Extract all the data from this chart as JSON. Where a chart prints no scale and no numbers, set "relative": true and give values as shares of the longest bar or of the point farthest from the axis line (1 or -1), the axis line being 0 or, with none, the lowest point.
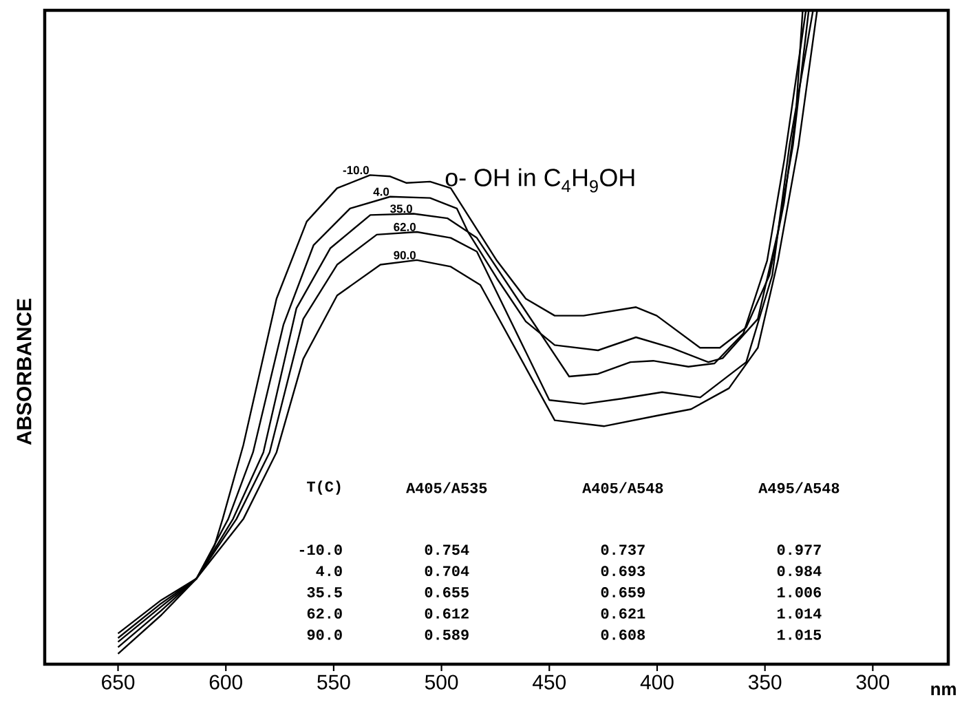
{
  "chart_data": {
    "type": "line",
    "relative": true,
    "title": "o- OH in C$_{4}$H$_{9}$OH",
    "xlabel": "nm",
    "ylabel": "ABSORBANCE",
    "xlim": [
      684,
      265
    ],
    "xticks": [
      650,
      600,
      550,
      500,
      450,
      400,
      350,
      300
    ],
    "series": [
      {
        "name": "-10.0",
        "color": "#000000",
        "x": [
          650,
          630,
          613.6,
          605.3,
          601.5,
          591.9,
          576.5,
          562.5,
          548.4,
          533.1,
          523.8,
          516.2,
          505.3,
          495.7,
          474.3,
          460.9,
          447.5,
          434.1,
          409.8,
          400.2,
          380.1,
          370.9,
          358.7,
          347.9,
          341.2,
          335.7,
          332.5
        ],
        "values": [
          0.016,
          0.075,
          0.131,
          0.181,
          0.222,
          0.335,
          0.559,
          0.677,
          0.728,
          0.748,
          0.746,
          0.736,
          0.738,
          0.728,
          0.617,
          0.559,
          0.533,
          0.533,
          0.546,
          0.533,
          0.484,
          0.484,
          0.515,
          0.595,
          0.705,
          0.839,
          1.0
        ]
      },
      {
        "name": "4.0",
        "color": "#000000",
        "x": [
          650,
          630,
          613.6,
          598.9,
          587.4,
          573.3,
          559.3,
          542.4,
          523.8,
          505.3,
          492.9,
          487.7,
          474.3,
          460.9,
          447.5,
          427.4,
          409.8,
          393.5,
          376.3,
          369.6,
          353.3,
          344,
          337,
          329.7
        ],
        "values": [
          0.026,
          0.082,
          0.131,
          0.222,
          0.324,
          0.519,
          0.641,
          0.697,
          0.715,
          0.713,
          0.697,
          0.661,
          0.59,
          0.524,
          0.488,
          0.48,
          0.5,
          0.484,
          0.462,
          0.468,
          0.528,
          0.661,
          0.794,
          1.0
        ]
      },
      {
        "name": "35.0",
        "color": "#000000",
        "x": [
          650,
          630,
          613.6,
          596.7,
          582.6,
          567.3,
          551.6,
          533,
          513,
          497.3,
          483.6,
          440.8,
          427.4,
          412.4,
          401.8,
          385.5,
          373.4,
          360,
          349,
          341,
          331
        ],
        "values": [
          0.034,
          0.088,
          0.131,
          0.222,
          0.324,
          0.544,
          0.636,
          0.687,
          0.689,
          0.682,
          0.652,
          0.44,
          0.444,
          0.462,
          0.464,
          0.455,
          0.46,
          0.506,
          0.617,
          0.772,
          1.0
        ]
      },
      {
        "name": "62.0",
        "color": "#000000",
        "x": [
          650,
          630,
          613.6,
          595.1,
          579.7,
          564.1,
          548.4,
          530,
          511.4,
          495.7,
          483.6,
          450,
          434,
          416.5,
          397.7,
          380,
          358.7,
          346.6,
          338.6,
          327.7
        ],
        "values": [
          0.04,
          0.093,
          0.131,
          0.222,
          0.324,
          0.528,
          0.611,
          0.657,
          0.661,
          0.652,
          0.631,
          0.404,
          0.398,
          0.406,
          0.416,
          0.408,
          0.462,
          0.595,
          0.794,
          1.0
        ]
      },
      {
        "name": "90.0",
        "color": "#000000",
        "x": [
          650,
          630,
          613.6,
          591.9,
          576.5,
          564.1,
          548.4,
          528.3,
          511.4,
          495.7,
          482,
          447.5,
          424.5,
          400.2,
          384.3,
          366.7,
          353.3,
          344,
          334.4,
          325.8
        ],
        "values": [
          0.047,
          0.098,
          0.131,
          0.222,
          0.324,
          0.467,
          0.564,
          0.611,
          0.618,
          0.608,
          0.58,
          0.373,
          0.364,
          0.38,
          0.39,
          0.422,
          0.484,
          0.617,
          0.794,
          1.0
        ]
      }
    ],
    "annotations": [
      "T(C)",
      "A405/A535",
      "A405/A548",
      "A495/A548",
      "-10.0",
      "0.754",
      "0.737",
      "0.977",
      "4.0",
      "0.704",
      "0.693",
      "0.984",
      "35.5",
      "0.655",
      "0.659",
      "1.006",
      "62.0",
      "0.612",
      "0.621",
      "1.014",
      "90.0",
      "0.589",
      "0.608",
      "1.015"
    ]
  }
}
